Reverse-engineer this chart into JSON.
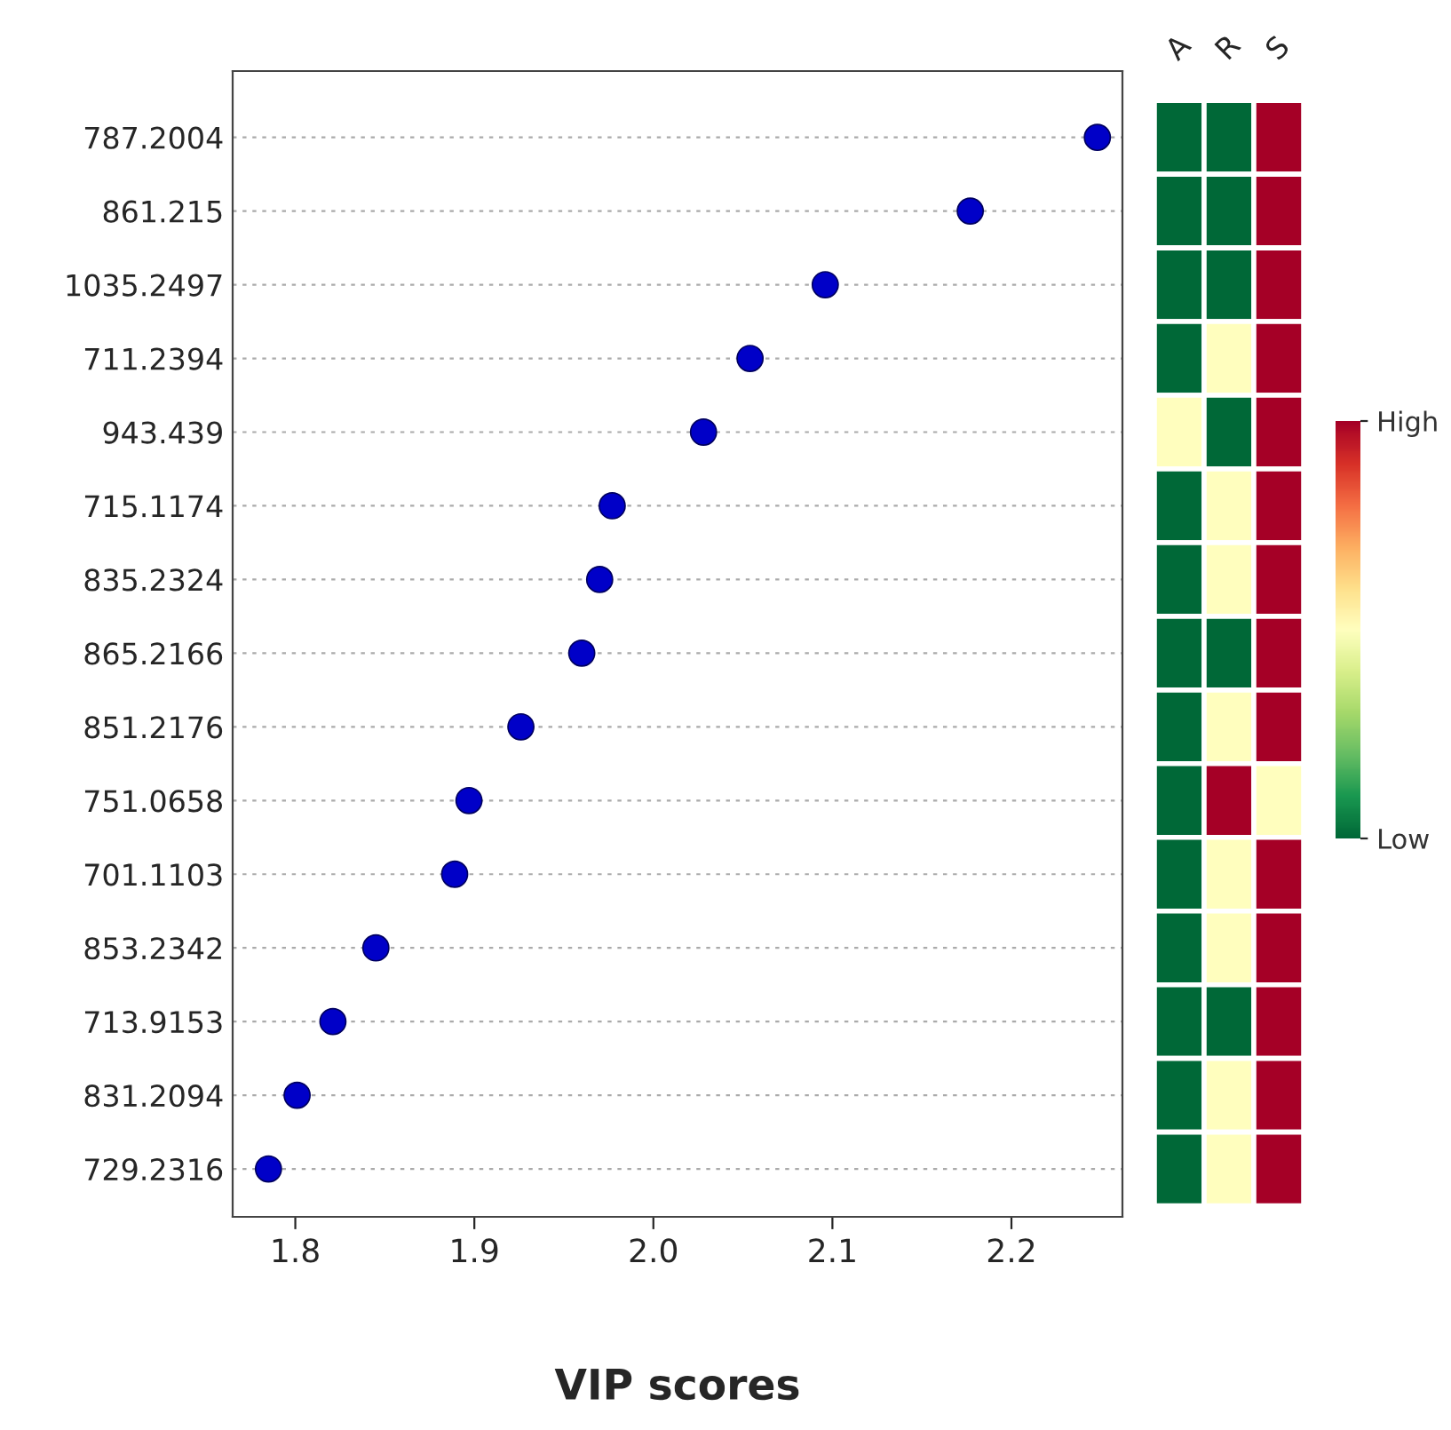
{
  "chart_data": [
    {
      "type": "scatter",
      "orientation": "horizontal",
      "categories": [
        "787.2004",
        "861.215",
        "1035.2497",
        "711.2394",
        "943.439",
        "715.1174",
        "835.2324",
        "865.2166",
        "851.2176",
        "751.0658",
        "701.1103",
        "853.2342",
        "713.9153",
        "831.2094",
        "729.2316"
      ],
      "series": [
        {
          "color": "#0000c8",
          "values": [
            2.248,
            2.177,
            2.096,
            2.054,
            2.028,
            1.977,
            1.97,
            1.96,
            1.926,
            1.897,
            1.889,
            1.845,
            1.821,
            1.801,
            1.785
          ]
        }
      ],
      "xlim": [
        1.765,
        2.262
      ],
      "xticks": [
        1.8,
        1.9,
        {
          "value": 2.0,
          "label": "2.0"
        },
        2.1,
        2.2
      ],
      "xlabel": "VIP scores",
      "grid": "y",
      "marker": "circle"
    },
    {
      "type": "heatmap",
      "categories": [
        "A",
        "R",
        "S"
      ],
      "y_categories": [
        "787.2004",
        "861.215",
        "1035.2497",
        "711.2394",
        "943.439",
        "715.1174",
        "835.2324",
        "865.2166",
        "851.2176",
        "751.0658",
        "701.1103",
        "853.2342",
        "713.9153",
        "831.2094",
        "729.2316"
      ],
      "cells": [
        [
          0,
          0,
          1
        ],
        [
          0,
          0,
          1
        ],
        [
          0,
          0,
          1
        ],
        [
          0,
          0.5,
          1
        ],
        [
          0.5,
          0,
          1
        ],
        [
          0,
          0.5,
          1
        ],
        [
          0,
          0.5,
          1
        ],
        [
          0,
          0,
          1
        ],
        [
          0,
          0.5,
          1
        ],
        [
          0,
          1,
          0.5
        ],
        [
          0,
          0.5,
          1
        ],
        [
          0,
          0.5,
          1
        ],
        [
          0,
          0,
          1
        ],
        [
          0,
          0.5,
          1
        ],
        [
          0,
          0.5,
          1
        ]
      ],
      "clim": [
        0,
        1
      ],
      "cticks": [
        {
          "value": 0,
          "label": "Low"
        },
        {
          "value": 1,
          "label": "High"
        }
      ],
      "tick_labels": "x"
    }
  ]
}
